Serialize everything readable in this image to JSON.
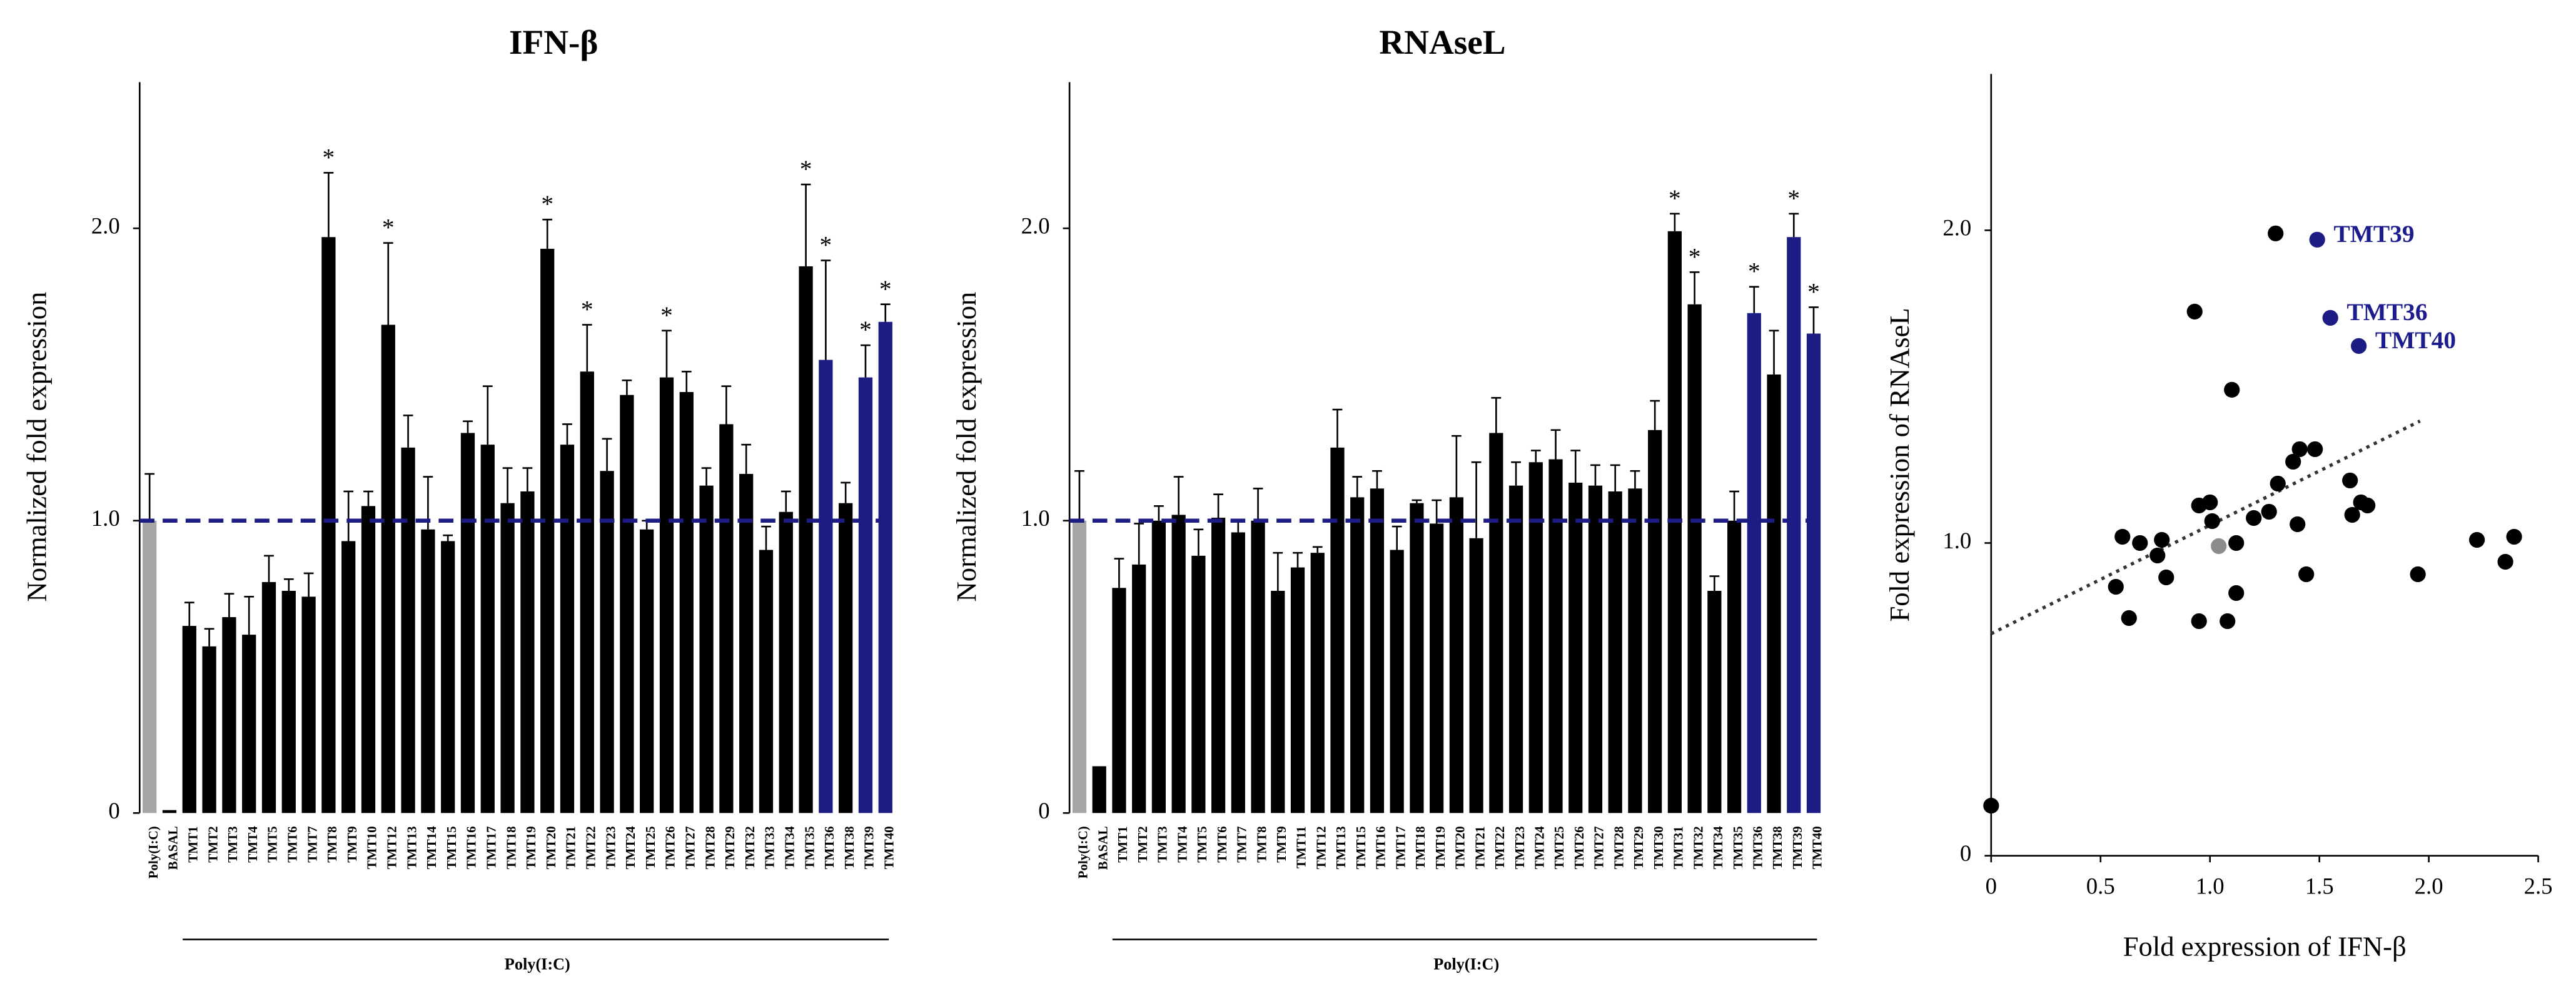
{
  "chart_data": [
    {
      "type": "bar",
      "title": "IFN-β",
      "y_label": "Normalized fold expression",
      "group_label": "Poly(I:C)",
      "categories": [
        "Poly(I:C)",
        "BASAL",
        "TMT1",
        "TMT2",
        "TMT3",
        "TMT4",
        "TMT5",
        "TMT6",
        "TMT7",
        "TMT8",
        "TMT9",
        "TMT10",
        "TMT12",
        "TMT13",
        "TMT14",
        "TMT15",
        "TMT16",
        "TMT17",
        "TMT18",
        "TMT19",
        "TMT20",
        "TMT21",
        "TMT22",
        "TMT23",
        "TMT24",
        "TMT25",
        "TMT26",
        "TMT27",
        "TMT28",
        "TMT29",
        "TMT32",
        "TMT33",
        "TMT34",
        "TMT35",
        "TMT36",
        "TMT38",
        "TMT39",
        "TMT40"
      ],
      "values": [
        1.0,
        0.01,
        0.64,
        0.57,
        0.67,
        0.61,
        0.79,
        0.76,
        0.74,
        1.97,
        0.93,
        1.05,
        1.67,
        1.25,
        0.97,
        0.93,
        1.3,
        1.26,
        1.06,
        1.1,
        1.93,
        1.26,
        1.51,
        1.17,
        1.43,
        0.97,
        1.49,
        1.44,
        1.12,
        1.33,
        1.16,
        0.9,
        1.03,
        1.87,
        1.55,
        1.06,
        1.49,
        1.68
      ],
      "errors": [
        0.16,
        null,
        0.08,
        0.06,
        0.08,
        0.13,
        0.09,
        0.04,
        0.08,
        0.22,
        0.17,
        0.05,
        0.28,
        0.11,
        0.18,
        0.02,
        0.04,
        0.2,
        0.12,
        0.08,
        0.1,
        0.07,
        0.16,
        0.11,
        0.05,
        0.03,
        0.16,
        0.07,
        0.06,
        0.13,
        0.1,
        0.08,
        0.07,
        0.28,
        0.34,
        0.07,
        0.11,
        0.06
      ],
      "annotations": [
        null,
        null,
        null,
        null,
        null,
        null,
        null,
        null,
        null,
        "*",
        null,
        null,
        "*",
        null,
        null,
        null,
        null,
        null,
        null,
        null,
        "*",
        null,
        "*",
        null,
        null,
        null,
        "*",
        null,
        null,
        null,
        null,
        null,
        null,
        "*",
        "*",
        null,
        "*",
        "*"
      ],
      "colors": [
        "#a6a6a6",
        "#000000",
        "#000000",
        "#000000",
        "#000000",
        "#000000",
        "#000000",
        "#000000",
        "#000000",
        "#000000",
        "#000000",
        "#000000",
        "#000000",
        "#000000",
        "#000000",
        "#000000",
        "#000000",
        "#000000",
        "#000000",
        "#000000",
        "#000000",
        "#000000",
        "#000000",
        "#000000",
        "#000000",
        "#000000",
        "#000000",
        "#000000",
        "#000000",
        "#000000",
        "#000000",
        "#000000",
        "#000000",
        "#000000",
        "#1c1c84",
        "#000000",
        "#1c1c84",
        "#1c1c84"
      ],
      "reference_line": 1,
      "reference_color": "#1c1c84",
      "ylim": [
        0,
        2.5
      ],
      "yticks": [
        0,
        {
          "value": 1,
          "label": "1.0"
        },
        {
          "value": 2,
          "label": "2.0"
        }
      ]
    },
    {
      "type": "bar",
      "title": "RNAseL",
      "y_label": "Normalized fold expression",
      "group_label": "Poly(I:C)",
      "categories": [
        "Poly(I:C)",
        "BASAL",
        "TMT1",
        "TMT2",
        "TMT3",
        "TMT4",
        "TMT5",
        "TMT6",
        "TMT7",
        "TMT8",
        "TMT9",
        "TMT11",
        "TMT12",
        "TMT13",
        "TMT15",
        "TMT16",
        "TMT17",
        "TMT18",
        "TMT19",
        "TMT20",
        "TMT21",
        "TMT22",
        "TMT23",
        "TMT24",
        "TMT25",
        "TMT26",
        "TMT27",
        "TMT28",
        "TMT29",
        "TMT30",
        "TMT31",
        "TMT32",
        "TMT34",
        "TMT35",
        "TMT36",
        "TMT38",
        "TMT39",
        "TMT40"
      ],
      "values": [
        1.0,
        0.16,
        0.77,
        0.85,
        1.0,
        1.02,
        0.88,
        1.01,
        0.96,
        1.0,
        0.76,
        0.84,
        0.89,
        1.25,
        1.08,
        1.11,
        0.9,
        1.06,
        0.99,
        1.08,
        0.94,
        1.3,
        1.12,
        1.2,
        1.21,
        1.13,
        1.12,
        1.1,
        1.11,
        1.31,
        1.99,
        1.74,
        0.76,
        1.0,
        1.71,
        1.5,
        1.97,
        1.64
      ],
      "errors": [
        0.17,
        null,
        0.1,
        0.14,
        0.05,
        0.13,
        0.09,
        0.08,
        0.04,
        0.11,
        0.13,
        0.05,
        0.02,
        0.13,
        0.07,
        0.06,
        0.08,
        0.01,
        0.08,
        0.21,
        0.26,
        0.12,
        0.08,
        0.04,
        0.1,
        0.11,
        0.07,
        0.09,
        0.06,
        0.1,
        0.06,
        0.11,
        0.05,
        0.1,
        0.09,
        0.15,
        0.08,
        0.09
      ],
      "annotations": [
        null,
        null,
        null,
        null,
        null,
        null,
        null,
        null,
        null,
        null,
        null,
        null,
        null,
        null,
        null,
        null,
        null,
        null,
        null,
        null,
        null,
        null,
        null,
        null,
        null,
        null,
        null,
        null,
        null,
        null,
        "*",
        "*",
        null,
        null,
        "*",
        null,
        "*",
        "*"
      ],
      "colors": [
        "#a6a6a6",
        "#000000",
        "#000000",
        "#000000",
        "#000000",
        "#000000",
        "#000000",
        "#000000",
        "#000000",
        "#000000",
        "#000000",
        "#000000",
        "#000000",
        "#000000",
        "#000000",
        "#000000",
        "#000000",
        "#000000",
        "#000000",
        "#000000",
        "#000000",
        "#000000",
        "#000000",
        "#000000",
        "#000000",
        "#000000",
        "#000000",
        "#000000",
        "#000000",
        "#000000",
        "#000000",
        "#000000",
        "#000000",
        "#000000",
        "#1c1c84",
        "#000000",
        "#1c1c84",
        "#1c1c84"
      ],
      "reference_line": 1,
      "reference_color": "#1c1c84",
      "ylim": [
        0,
        2.5
      ],
      "yticks": [
        0,
        {
          "value": 1,
          "label": "1.0"
        },
        {
          "value": 2,
          "label": "2.0"
        }
      ]
    },
    {
      "type": "scatter",
      "x_label": "Fold expression of  IFN-β",
      "y_label": "Fold expression of  RNAseL",
      "x": [
        0,
        0.57,
        0.6,
        0.63,
        0.68,
        0.76,
        0.78,
        0.8,
        0.93,
        0.95,
        0.95,
        1.0,
        1.01,
        1.04,
        1.08,
        1.1,
        1.12,
        1.12,
        1.2,
        1.27,
        1.3,
        1.31,
        1.38,
        1.41,
        1.4,
        1.44,
        1.48,
        1.64,
        1.65,
        1.69,
        1.72,
        1.95,
        2.22,
        2.35,
        2.39,
        1.49,
        1.55,
        1.68
      ],
      "y": [
        0.16,
        0.86,
        1.02,
        0.76,
        1.0,
        0.96,
        1.01,
        0.89,
        1.74,
        1.12,
        0.75,
        1.13,
        1.07,
        0.99,
        0.75,
        1.49,
        1.0,
        0.84,
        1.08,
        1.1,
        1.99,
        1.19,
        1.26,
        1.3,
        1.06,
        0.9,
        1.3,
        1.2,
        1.09,
        1.13,
        1.12,
        0.9,
        1.01,
        0.94,
        1.02,
        1.97,
        1.72,
        1.63
      ],
      "colors": [
        "#000000",
        "#000000",
        "#000000",
        "#000000",
        "#000000",
        "#000000",
        "#000000",
        "#000000",
        "#000000",
        "#000000",
        "#000000",
        "#000000",
        "#000000",
        "#8c8c8c",
        "#000000",
        "#000000",
        "#000000",
        "#000000",
        "#000000",
        "#000000",
        "#000000",
        "#000000",
        "#000000",
        "#000000",
        "#000000",
        "#000000",
        "#000000",
        "#000000",
        "#000000",
        "#000000",
        "#000000",
        "#000000",
        "#000000",
        "#000000",
        "#000000",
        "#1c1c84",
        "#1c1c84",
        "#1c1c84"
      ],
      "point_labels": [
        null,
        null,
        null,
        null,
        null,
        null,
        null,
        null,
        null,
        null,
        null,
        null,
        null,
        null,
        null,
        null,
        null,
        null,
        null,
        null,
        null,
        null,
        null,
        null,
        null,
        null,
        null,
        null,
        null,
        null,
        null,
        null,
        null,
        null,
        null,
        "TMT39",
        "TMT36",
        "TMT40"
      ],
      "label_color": "#1c1c8f",
      "trendline": {
        "x": [
          0,
          1.96
        ],
        "y": [
          0.71,
          1.39
        ]
      },
      "xlim": [
        0,
        2.5
      ],
      "xticks": [
        0,
        0.5,
        {
          "value": 1,
          "label": "1.0"
        },
        1.5,
        {
          "value": 2,
          "label": "2.0"
        },
        2.5
      ],
      "ylim": [
        0,
        2.5
      ],
      "yticks": [
        0,
        {
          "value": 1,
          "label": "1.0"
        },
        {
          "value": 2,
          "label": "2.0"
        }
      ]
    }
  ]
}
